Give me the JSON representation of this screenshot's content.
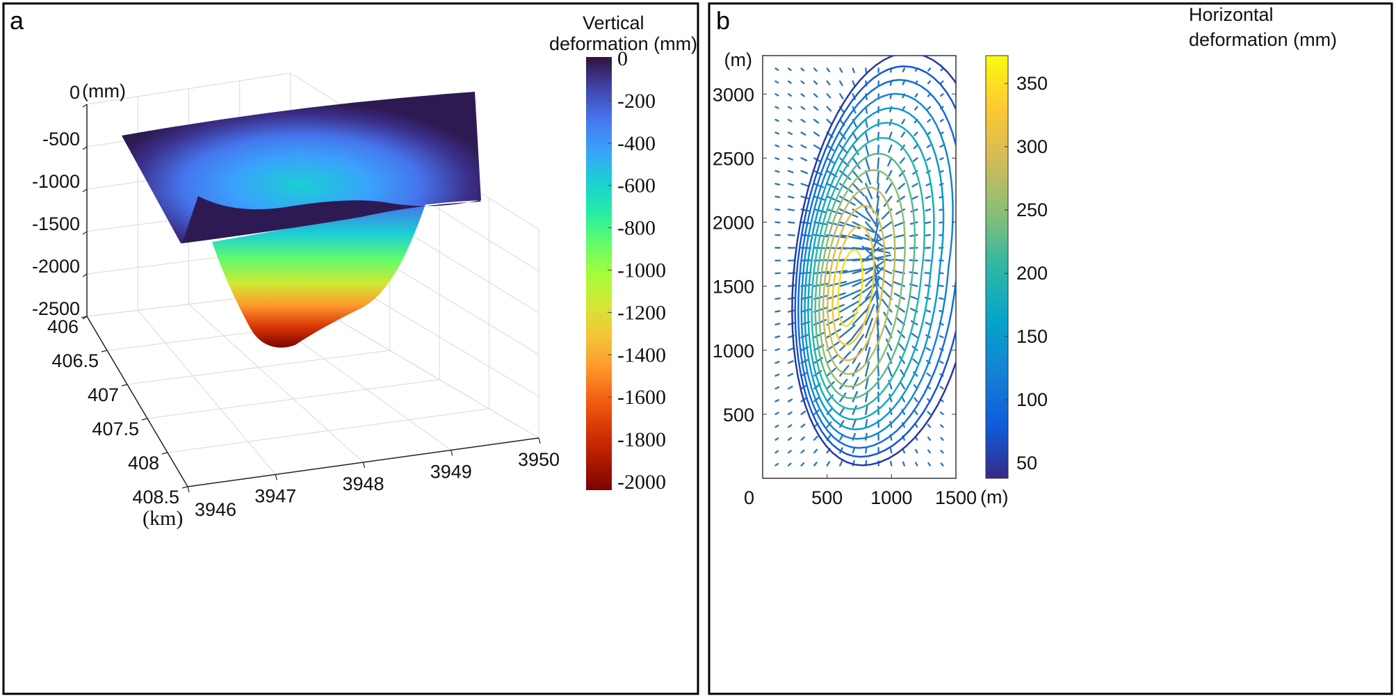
{
  "chart_data": [
    {
      "panel_label": "a",
      "type": "surface",
      "z_axis": {
        "unit": "(mm)",
        "ticks": [
          0,
          -500,
          -1000,
          -1500,
          -2000,
          -2500
        ]
      },
      "y_axis": {
        "unit": "(km)",
        "ticks": [
          406,
          406.5,
          407,
          407.5,
          408,
          408.5
        ]
      },
      "x_axis": {
        "ticks": [
          3946,
          3947,
          3948,
          3949,
          3950
        ]
      },
      "grid": true,
      "colorbar": {
        "title_line1": "Vertical",
        "title_line2": "deformation (mm)",
        "ticks": [
          0,
          -200,
          -400,
          -600,
          -800,
          -1000,
          -1200,
          -1400,
          -1600,
          -1800,
          -2000
        ],
        "range": [
          -2000,
          0
        ],
        "colormap": "turbo",
        "colors": [
          "#30123b",
          "#4145ab",
          "#4675ed",
          "#39a2fc",
          "#1bcfd4",
          "#24eca6",
          "#61fc6c",
          "#a4fc3b",
          "#d1e834",
          "#f3c63a",
          "#fe9b2d",
          "#f36315",
          "#d93806",
          "#b11901",
          "#7a0403"
        ]
      }
    },
    {
      "panel_label": "b",
      "type": "contour+quiver",
      "x_axis": {
        "unit": "(m)",
        "ticks": [
          0,
          500,
          1000,
          1500
        ],
        "range": [
          0,
          1500
        ]
      },
      "y_axis": {
        "unit": "(m)",
        "ticks": [
          500,
          1000,
          1500,
          2000,
          2500,
          3000
        ],
        "range": [
          0,
          3300
        ]
      },
      "contour_levels": [
        50,
        75,
        100,
        125,
        150,
        175,
        200,
        225,
        250,
        275,
        300,
        325,
        350
      ],
      "quiver": {
        "grid_spacing_m": 100,
        "color": "#2a78b8"
      },
      "colorbar": {
        "title_line1": "Horizontal",
        "title_line2": "deformation (mm)",
        "ticks": [
          50,
          100,
          150,
          200,
          250,
          300,
          350
        ],
        "range": [
          38,
          372
        ],
        "colormap": "parula",
        "colors": [
          "#352a87",
          "#0f5cdd",
          "#1481d6",
          "#06a4ca",
          "#2eb7a4",
          "#87bf77",
          "#d1bb59",
          "#fec832",
          "#f9fb0e"
        ]
      }
    }
  ]
}
